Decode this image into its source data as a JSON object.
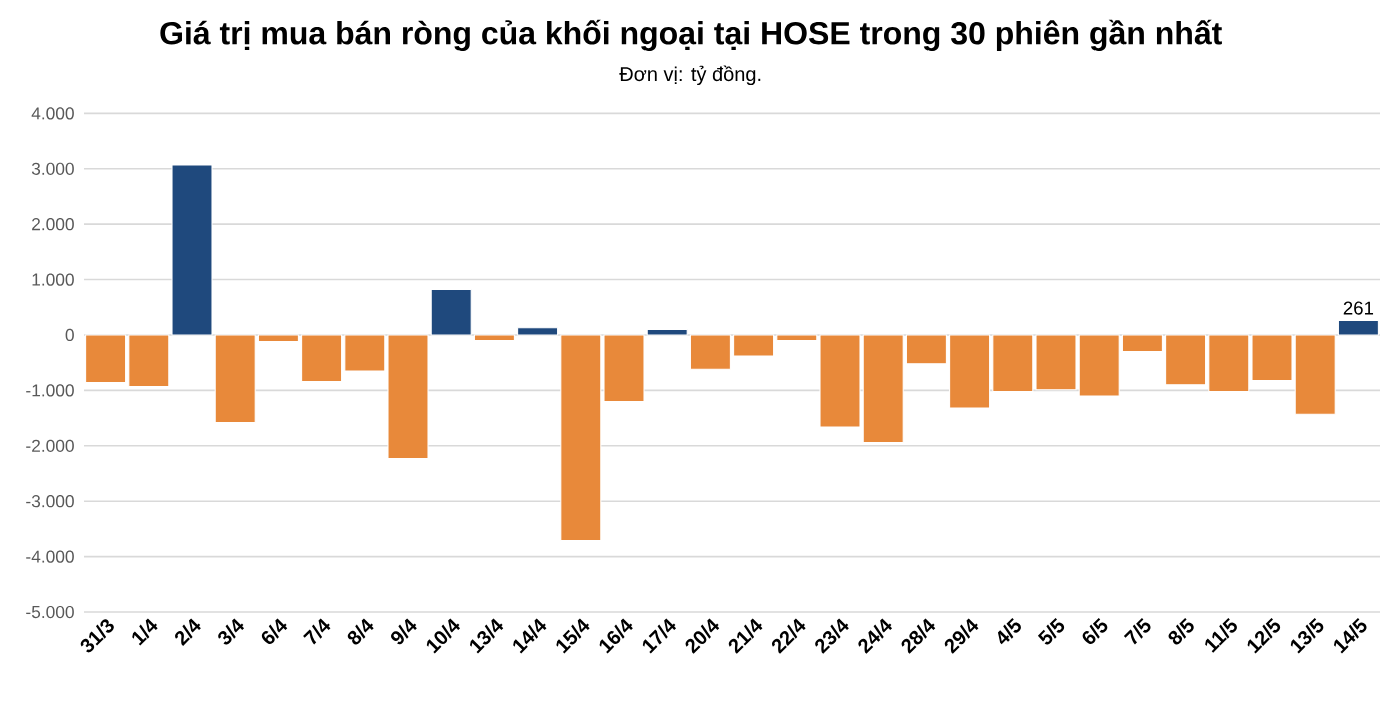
{
  "chart_data": {
    "type": "bar",
    "title": "Giá trị mua bán ròng của khối ngoại tại HOSE trong 30 phiên gần nhất",
    "subtitle": "Đơn vị: tỷ đồng.",
    "categories": [
      "31/3",
      "1/4",
      "2/4",
      "3/4",
      "6/4",
      "7/4",
      "8/4",
      "9/4",
      "10/4",
      "13/4",
      "14/4",
      "15/4",
      "16/4",
      "17/4",
      "20/4",
      "21/4",
      "22/4",
      "23/4",
      "24/4",
      "28/4",
      "29/4",
      "4/5",
      "5/5",
      "6/5",
      "7/5",
      "8/5",
      "11/5",
      "12/5",
      "13/5",
      "14/5"
    ],
    "values": [
      -860,
      -930,
      3070,
      -1580,
      -120,
      -840,
      -650,
      -2230,
      820,
      -100,
      130,
      -3710,
      -1200,
      100,
      -620,
      -380,
      -100,
      -1660,
      -1940,
      -520,
      -1320,
      -1020,
      -990,
      -1100,
      -300,
      -900,
      -1020,
      -820,
      -1430,
      261
    ],
    "colors": [
      "#e8893a",
      "#e8893a",
      "#1f497d",
      "#e8893a",
      "#e8893a",
      "#e8893a",
      "#e8893a",
      "#e8893a",
      "#1f497d",
      "#e8893a",
      "#1f497d",
      "#e8893a",
      "#e8893a",
      "#1f497d",
      "#e8893a",
      "#e8893a",
      "#e8893a",
      "#e8893a",
      "#e8893a",
      "#e8893a",
      "#e8893a",
      "#e8893a",
      "#e8893a",
      "#e8893a",
      "#e8893a",
      "#e8893a",
      "#e8893a",
      "#e8893a",
      "#e8893a",
      "#1f497d"
    ],
    "value_labels": [
      null,
      null,
      null,
      null,
      null,
      null,
      null,
      null,
      null,
      null,
      null,
      null,
      null,
      null,
      null,
      null,
      null,
      null,
      null,
      null,
      null,
      null,
      null,
      null,
      null,
      null,
      null,
      null,
      null,
      "261"
    ],
    "ylim": [
      -5000,
      4000
    ],
    "yticks": [
      {
        "value": -5000,
        "label": "-5.000"
      },
      {
        "value": -4000,
        "label": "-4.000"
      },
      {
        "value": -3000,
        "label": "-3.000"
      },
      {
        "value": -2000,
        "label": "-2.000"
      },
      {
        "value": -1000,
        "label": "-1.000"
      },
      0,
      {
        "value": 1000,
        "label": "1.000"
      },
      {
        "value": 2000,
        "label": "2.000"
      },
      {
        "value": 3000,
        "label": "3.000"
      },
      {
        "value": 4000,
        "label": "4.000"
      }
    ],
    "grid": "y"
  }
}
